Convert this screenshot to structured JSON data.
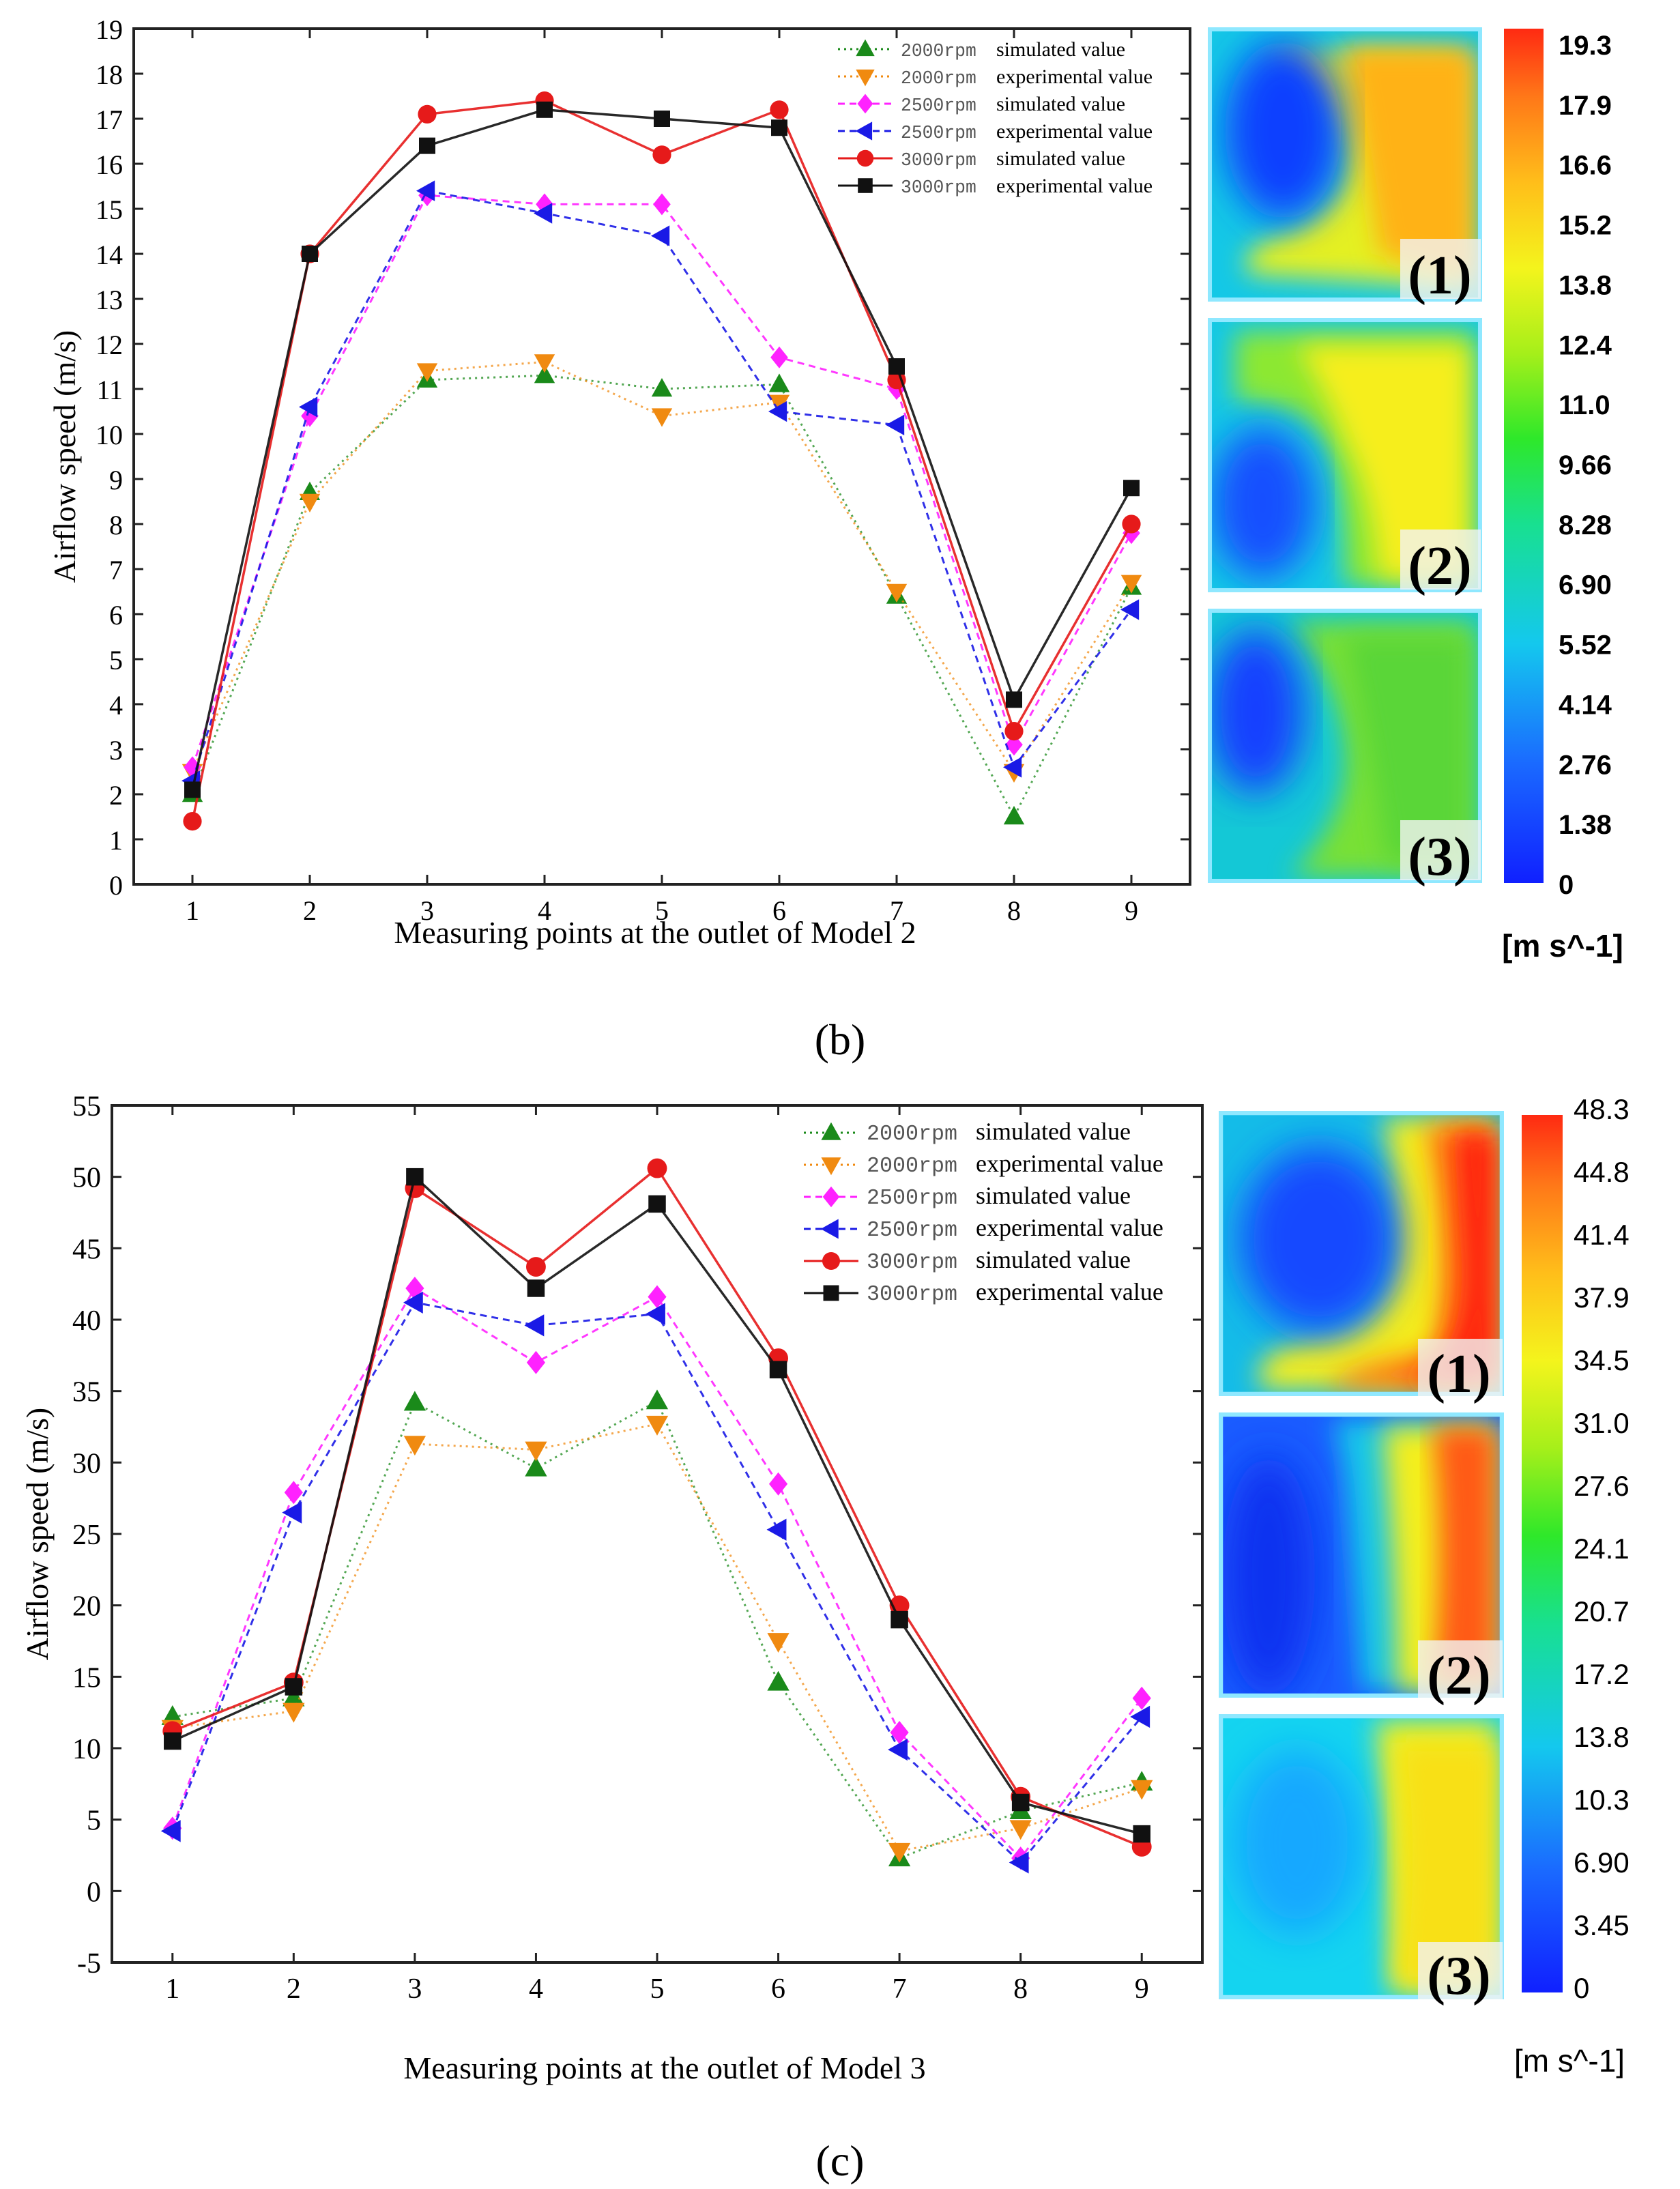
{
  "chart_data": [
    {
      "type": "line",
      "panel_label": "(b)",
      "title": "",
      "xlabel": "Measuring points at the outlet of Model 2",
      "ylabel": "Airflow speed  (m/s)",
      "x": [
        1,
        2,
        3,
        4,
        5,
        6,
        7,
        8,
        9
      ],
      "xlim": [
        0.5,
        9.5
      ],
      "ylim": [
        0,
        19
      ],
      "yticks": [
        0,
        1,
        2,
        3,
        4,
        5,
        6,
        7,
        8,
        9,
        10,
        11,
        12,
        13,
        14,
        15,
        16,
        17,
        18,
        19
      ],
      "legend_position": "top-right",
      "series": [
        {
          "name_rpm": "2000rpm",
          "name_desc": "simulated value",
          "color": "#1a8a1a",
          "marker": "triangle-up",
          "dash": "dotted",
          "values": [
            2.0,
            8.7,
            11.2,
            11.3,
            11.0,
            11.1,
            6.4,
            1.5,
            6.6
          ]
        },
        {
          "name_rpm": "2000rpm",
          "name_desc": "experimental value",
          "color": "#f08a10",
          "marker": "triangle-down",
          "dash": "dotted",
          "values": [
            2.5,
            8.5,
            11.4,
            11.6,
            10.4,
            10.7,
            6.5,
            2.5,
            6.7
          ]
        },
        {
          "name_rpm": "2500rpm",
          "name_desc": "simulated value",
          "color": "#ff22ff",
          "marker": "diamond",
          "dash": "dashed",
          "values": [
            2.6,
            10.4,
            15.3,
            15.1,
            15.1,
            11.7,
            11.0,
            3.1,
            7.8
          ]
        },
        {
          "name_rpm": "2500rpm",
          "name_desc": "experimental value",
          "color": "#1a1ae6",
          "marker": "triangle-left",
          "dash": "dashed",
          "values": [
            2.3,
            10.6,
            15.4,
            14.9,
            14.4,
            10.5,
            10.2,
            2.6,
            6.1
          ]
        },
        {
          "name_rpm": "3000rpm",
          "name_desc": "simulated value",
          "color": "#e61a1a",
          "marker": "circle",
          "dash": "solid",
          "values": [
            1.4,
            14.0,
            17.1,
            17.4,
            16.2,
            17.2,
            11.2,
            3.4,
            8.0
          ]
        },
        {
          "name_rpm": "3000rpm",
          "name_desc": "experimental value",
          "color": "#111111",
          "marker": "square",
          "dash": "solid",
          "values": [
            2.1,
            14.0,
            16.4,
            17.2,
            17.0,
            16.8,
            11.5,
            4.1,
            8.8
          ]
        }
      ],
      "contour_labels": [
        "(1)",
        "(2)",
        "(3)"
      ],
      "colorbar": {
        "ticks": [
          "19.3",
          "17.9",
          "16.6",
          "15.2",
          "13.8",
          "12.4",
          "11.0",
          "9.66",
          "8.28",
          "6.90",
          "5.52",
          "4.14",
          "2.76",
          "1.38",
          "0"
        ],
        "unit": "[m s^-1]",
        "max": 19.3
      }
    },
    {
      "type": "line",
      "panel_label": "(c)",
      "title": "",
      "xlabel": "Measuring points at the outlet of Model 3",
      "ylabel": "Airflow speed  (m/s)",
      "x": [
        1,
        2,
        3,
        4,
        5,
        6,
        7,
        8,
        9
      ],
      "xlim": [
        0.5,
        9.5
      ],
      "ylim": [
        -5,
        55
      ],
      "yticks": [
        -5,
        0,
        5,
        10,
        15,
        20,
        25,
        30,
        35,
        40,
        45,
        50,
        55
      ],
      "legend_position": "top-right",
      "series": [
        {
          "name_rpm": "2000rpm",
          "name_desc": "simulated value",
          "color": "#1a8a1a",
          "marker": "triangle-up",
          "dash": "dotted",
          "values": [
            12.2,
            13.5,
            34.2,
            29.6,
            34.3,
            14.6,
            2.3,
            5.6,
            7.6
          ]
        },
        {
          "name_rpm": "2000rpm",
          "name_desc": "experimental value",
          "color": "#f08a10",
          "marker": "triangle-down",
          "dash": "dotted",
          "values": [
            11.4,
            12.6,
            31.3,
            30.9,
            32.7,
            17.5,
            2.8,
            4.4,
            7.2
          ]
        },
        {
          "name_rpm": "2500rpm",
          "name_desc": "simulated value",
          "color": "#ff22ff",
          "marker": "diamond",
          "dash": "dashed",
          "values": [
            4.4,
            27.9,
            42.2,
            37.0,
            41.6,
            28.5,
            11.1,
            2.3,
            13.5
          ]
        },
        {
          "name_rpm": "2500rpm",
          "name_desc": "experimental value",
          "color": "#1a1ae6",
          "marker": "triangle-left",
          "dash": "dashed",
          "values": [
            4.2,
            26.5,
            41.2,
            39.6,
            40.4,
            25.3,
            9.9,
            2.0,
            12.2
          ]
        },
        {
          "name_rpm": "3000rpm",
          "name_desc": "simulated value",
          "color": "#e61a1a",
          "marker": "circle",
          "dash": "solid",
          "values": [
            11.2,
            14.6,
            49.2,
            43.7,
            50.6,
            37.3,
            20.0,
            6.6,
            3.1
          ]
        },
        {
          "name_rpm": "3000rpm",
          "name_desc": "experimental value",
          "color": "#111111",
          "marker": "square",
          "dash": "solid",
          "values": [
            10.5,
            14.3,
            50.0,
            42.2,
            48.1,
            36.5,
            19.0,
            6.2,
            4.0
          ]
        }
      ],
      "contour_labels": [
        "(1)",
        "(2)",
        "(3)"
      ],
      "colorbar": {
        "ticks": [
          "48.3",
          "44.8",
          "41.4",
          "37.9",
          "34.5",
          "31.0",
          "27.6",
          "24.1",
          "20.7",
          "17.2",
          "13.8",
          "10.3",
          "6.90",
          "3.45",
          "0"
        ],
        "unit": "[m s^-1]",
        "max": 48.3
      }
    }
  ]
}
